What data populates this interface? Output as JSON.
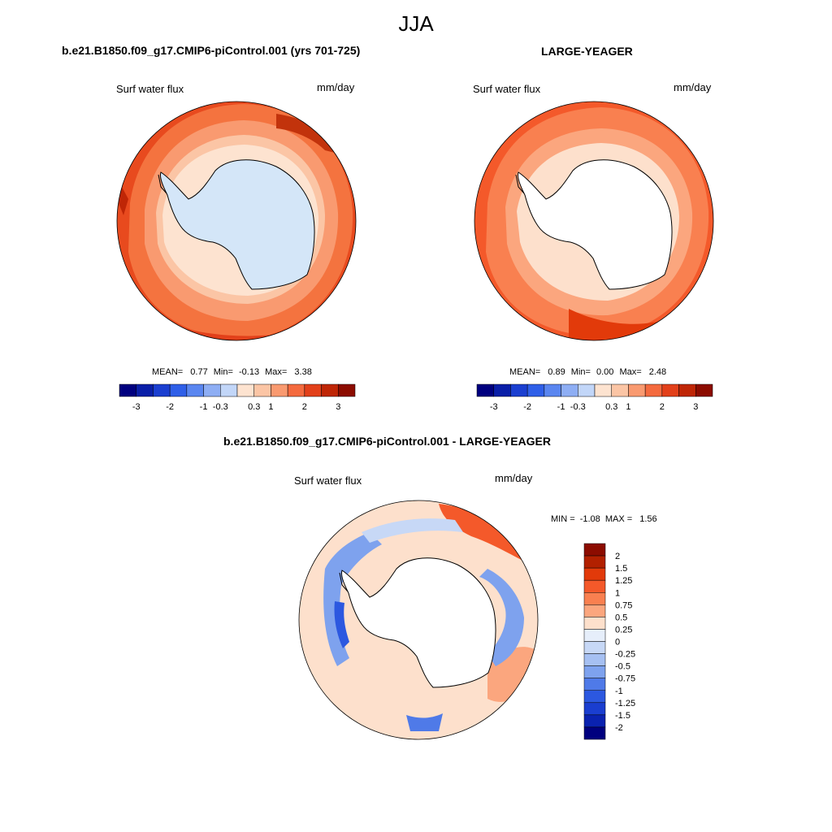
{
  "main_title": "JJA",
  "panels": [
    {
      "title": "b.e21.B1850.f09_g17.CMIP6-piControl.001 (yrs 701-725)",
      "variable": "Surf water flux",
      "units": "mm/day",
      "stats": {
        "mean_label": "MEAN=",
        "mean": "0.77",
        "min_label": "Min=",
        "min": "-0.13",
        "max_label": "Max=",
        "max": "3.38"
      }
    },
    {
      "title": "LARGE-YEAGER",
      "variable": "Surf water flux",
      "units": "mm/day",
      "stats": {
        "mean_label": "MEAN=",
        "mean": "0.89",
        "min_label": "Min=",
        "min": "0.00",
        "max_label": "Max=",
        "max": "2.48"
      }
    },
    {
      "title": "b.e21.B1850.f09_g17.CMIP6-piControl.001 - LARGE-YEAGER",
      "variable": "Surf water flux",
      "units": "mm/day",
      "stats": {
        "min_label": "MIN =",
        "min": "-1.08",
        "max_label": "MAX =",
        "max": "1.56"
      }
    }
  ],
  "colorbar_top": {
    "colors": [
      "#00007f",
      "#0a1fa8",
      "#1b3fd0",
      "#2f5fe8",
      "#5a86f0",
      "#8eaef4",
      "#c2d6f8",
      "#fde3d0",
      "#fbc5a5",
      "#f99a70",
      "#f46a3e",
      "#e2401a",
      "#bf2606",
      "#8c0c00"
    ],
    "labels": [
      "-3",
      "-2",
      "-1",
      "-0.3",
      "0.3",
      "1",
      "2",
      "3"
    ]
  },
  "colorbar_diff": {
    "colors": [
      "#8c0c00",
      "#b22000",
      "#e23a0a",
      "#f4592a",
      "#f98050",
      "#fba67e",
      "#fde0cc",
      "#e6eefa",
      "#c7d8f6",
      "#a6c0f2",
      "#7ea2ee",
      "#4f7ae8",
      "#2c58e0",
      "#1a3ed0",
      "#0a22b0",
      "#00007f"
    ],
    "labels": [
      "2",
      "1.5",
      "1.25",
      "1",
      "0.75",
      "0.5",
      "0.25",
      "0",
      "-0.25",
      "-0.5",
      "-0.75",
      "-1",
      "-1.25",
      "-1.5",
      "-2"
    ]
  }
}
